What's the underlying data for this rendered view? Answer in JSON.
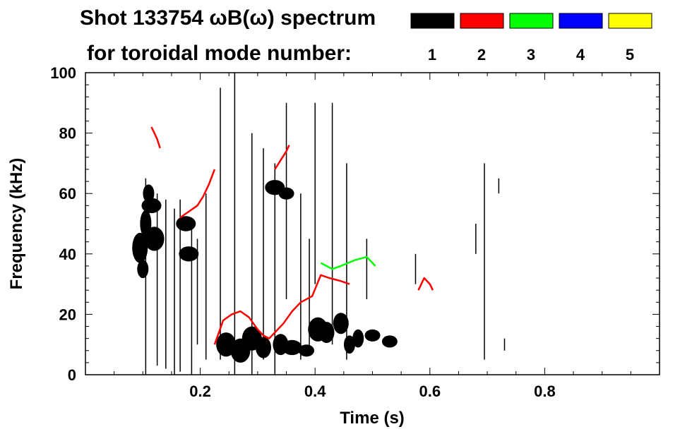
{
  "chart_data": {
    "type": "spectrogram",
    "title_line1": "Shot 133754 ωB(ω) spectrum",
    "title_line2": "for toroidal mode number:",
    "xlabel": "Time (s)",
    "ylabel": "Frequency (kHz)",
    "xlim": [
      0.0,
      1.0
    ],
    "ylim": [
      0,
      100
    ],
    "x_ticks": [
      0.2,
      0.4,
      0.6,
      0.8
    ],
    "x_tick_labels": [
      "0.2",
      "0.4",
      "0.6",
      "0.8"
    ],
    "y_ticks": [
      0,
      20,
      40,
      60,
      80,
      100
    ],
    "y_tick_labels": [
      "0",
      "20",
      "40",
      "60",
      "80",
      "100"
    ],
    "legend": [
      {
        "label": "1",
        "color": "#000000"
      },
      {
        "label": "2",
        "color": "#ff0000"
      },
      {
        "label": "3",
        "color": "#00ff00"
      },
      {
        "label": "4",
        "color": "#0000ff"
      },
      {
        "label": "5",
        "color": "#ffff00"
      }
    ],
    "series": [
      {
        "name": "n=1 blob",
        "mode": "1",
        "kind": "blob",
        "points": [
          [
            0.095,
            42,
            10
          ],
          [
            0.105,
            50,
            9
          ],
          [
            0.11,
            60,
            6
          ],
          [
            0.1,
            35,
            6
          ],
          [
            0.12,
            45,
            8
          ],
          [
            0.115,
            56,
            5
          ],
          [
            0.175,
            50,
            5
          ],
          [
            0.18,
            40,
            5
          ],
          [
            0.245,
            10,
            8
          ],
          [
            0.27,
            8,
            8
          ],
          [
            0.29,
            12,
            8
          ],
          [
            0.31,
            9,
            7
          ],
          [
            0.34,
            10,
            7
          ],
          [
            0.36,
            9,
            5
          ],
          [
            0.385,
            8,
            4
          ],
          [
            0.405,
            15,
            8
          ],
          [
            0.42,
            14,
            7
          ],
          [
            0.445,
            17,
            7
          ],
          [
            0.46,
            10,
            6
          ],
          [
            0.475,
            12,
            6
          ],
          [
            0.5,
            13,
            4
          ],
          [
            0.53,
            11,
            4
          ],
          [
            0.33,
            62,
            5
          ],
          [
            0.35,
            60,
            4
          ]
        ]
      },
      {
        "name": "n=1 streak",
        "mode": "1",
        "kind": "streak",
        "points": [
          [
            0.105,
            0,
            65
          ],
          [
            0.125,
            3,
            60
          ],
          [
            0.14,
            2,
            58
          ],
          [
            0.155,
            0,
            55
          ],
          [
            0.165,
            1,
            58
          ],
          [
            0.185,
            0,
            50
          ],
          [
            0.195,
            10,
            45
          ],
          [
            0.21,
            5,
            60
          ],
          [
            0.235,
            5,
            95
          ],
          [
            0.26,
            0,
            100
          ],
          [
            0.29,
            0,
            80
          ],
          [
            0.31,
            5,
            75
          ],
          [
            0.33,
            0,
            70
          ],
          [
            0.35,
            25,
            90
          ],
          [
            0.375,
            5,
            60
          ],
          [
            0.39,
            8,
            45
          ],
          [
            0.4,
            30,
            90
          ],
          [
            0.43,
            10,
            90
          ],
          [
            0.455,
            5,
            70
          ],
          [
            0.49,
            25,
            45
          ],
          [
            0.575,
            30,
            40
          ],
          [
            0.68,
            40,
            50
          ],
          [
            0.695,
            5,
            70
          ],
          [
            0.72,
            60,
            65
          ],
          [
            0.73,
            8,
            12
          ]
        ]
      },
      {
        "name": "n=2 chirp A",
        "mode": "2",
        "kind": "line",
        "points": [
          [
            0.165,
            52
          ],
          [
            0.18,
            54
          ],
          [
            0.195,
            56
          ],
          [
            0.205,
            59
          ],
          [
            0.215,
            63
          ],
          [
            0.225,
            68
          ]
        ]
      },
      {
        "name": "n=2 chirp B",
        "mode": "2",
        "kind": "line",
        "points": [
          [
            0.225,
            10
          ],
          [
            0.24,
            18
          ],
          [
            0.255,
            20
          ],
          [
            0.27,
            21
          ],
          [
            0.285,
            19
          ],
          [
            0.3,
            15
          ],
          [
            0.31,
            13
          ],
          [
            0.32,
            12
          ],
          [
            0.33,
            14
          ],
          [
            0.345,
            17
          ],
          [
            0.36,
            21
          ],
          [
            0.375,
            24
          ],
          [
            0.395,
            26
          ],
          [
            0.41,
            33
          ],
          [
            0.425,
            32
          ],
          [
            0.445,
            31
          ],
          [
            0.46,
            30
          ]
        ]
      },
      {
        "name": "n=2 chirp C",
        "mode": "2",
        "kind": "line",
        "points": [
          [
            0.33,
            68
          ],
          [
            0.34,
            71
          ],
          [
            0.35,
            74
          ],
          [
            0.355,
            76
          ]
        ]
      },
      {
        "name": "n=2 sparse",
        "mode": "2",
        "kind": "line",
        "points": [
          [
            0.115,
            82
          ],
          [
            0.12,
            80
          ],
          [
            0.125,
            78
          ],
          [
            0.13,
            75
          ]
        ]
      },
      {
        "name": "n=2 late",
        "mode": "2",
        "kind": "line",
        "points": [
          [
            0.58,
            28
          ],
          [
            0.585,
            30
          ],
          [
            0.59,
            32
          ],
          [
            0.6,
            30
          ],
          [
            0.605,
            28
          ]
        ]
      },
      {
        "name": "n=3 fragment",
        "mode": "3",
        "kind": "line",
        "points": [
          [
            0.41,
            37
          ],
          [
            0.43,
            35
          ],
          [
            0.445,
            36
          ],
          [
            0.47,
            38
          ],
          [
            0.49,
            39
          ],
          [
            0.505,
            36
          ]
        ]
      }
    ]
  }
}
